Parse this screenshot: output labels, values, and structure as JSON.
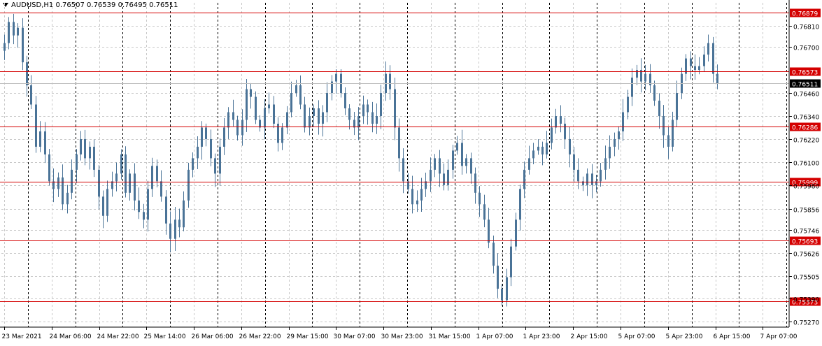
{
  "header": {
    "symbol": "AUDUSD,H1",
    "open": "0.76507",
    "high": "0.76539",
    "low": "0.76495",
    "close": "0.76511"
  },
  "colors": {
    "background": "#ffffff",
    "grid": "#c8c8c8",
    "candle": "#4a7397",
    "level_line": "#d40000",
    "level_label_bg": "#d40000",
    "current_price_bg": "#000000"
  },
  "chart_data": {
    "type": "candlestick",
    "ylim": [
      0.7524,
      0.7693
    ],
    "y_ticks": [
      "0.76810",
      "0.76700",
      "0.76460",
      "0.76340",
      "0.76220",
      "0.76100",
      "0.75980",
      "0.75856",
      "0.75746",
      "0.75626",
      "0.75505",
      "0.75390",
      "0.75270"
    ],
    "x_ticks": [
      "23 Mar 2021",
      "24 Mar 06:00",
      "24 Mar 22:00",
      "25 Mar 14:00",
      "26 Mar 06:00",
      "26 Mar 22:00",
      "29 Mar 15:00",
      "30 Mar 07:00",
      "30 Mar 23:00",
      "31 Mar 15:00",
      "1 Apr 07:00",
      "1 Apr 23:00",
      "2 Apr 15:00",
      "5 Apr 07:00",
      "5 Apr 23:00",
      "6 Apr 15:00",
      "7 Apr 07:00"
    ],
    "levels": [
      "0.76879",
      "0.76573",
      "0.76286",
      "0.75999",
      "0.75693",
      "0.75373"
    ],
    "current_price": "0.76511",
    "closes": [
      0.7672,
      0.7683,
      0.7676,
      0.768,
      0.7662,
      0.765,
      0.764,
      0.7618,
      0.7626,
      0.7614,
      0.76,
      0.7596,
      0.7602,
      0.7588,
      0.7594,
      0.7606,
      0.7614,
      0.7622,
      0.7612,
      0.7618,
      0.7606,
      0.7592,
      0.7582,
      0.7596,
      0.76,
      0.7604,
      0.7614,
      0.7594,
      0.7604,
      0.759,
      0.7584,
      0.758,
      0.7596,
      0.7608,
      0.76,
      0.7592,
      0.7578,
      0.757,
      0.758,
      0.7576,
      0.759,
      0.7606,
      0.7612,
      0.7618,
      0.7628,
      0.7622,
      0.7612,
      0.7604,
      0.7618,
      0.7628,
      0.7636,
      0.7632,
      0.7624,
      0.7632,
      0.7648,
      0.7644,
      0.7632,
      0.7628,
      0.7638,
      0.764,
      0.763,
      0.762,
      0.7628,
      0.7636,
      0.7646,
      0.765,
      0.764,
      0.7628,
      0.7634,
      0.7638,
      0.763,
      0.7636,
      0.7646,
      0.7652,
      0.7656,
      0.7646,
      0.7638,
      0.7632,
      0.7628,
      0.7634,
      0.764,
      0.7636,
      0.763,
      0.7634,
      0.7646,
      0.7656,
      0.7648,
      0.7628,
      0.7612,
      0.76,
      0.7596,
      0.7588,
      0.759,
      0.7596,
      0.76,
      0.7606,
      0.7612,
      0.7604,
      0.7598,
      0.7606,
      0.7616,
      0.762,
      0.7608,
      0.7612,
      0.7604,
      0.7594,
      0.7588,
      0.758,
      0.7568,
      0.7556,
      0.7544,
      0.7538,
      0.755,
      0.7566,
      0.758,
      0.7596,
      0.7606,
      0.7612,
      0.7616,
      0.7618,
      0.7614,
      0.762,
      0.7628,
      0.7634,
      0.763,
      0.7622,
      0.7614,
      0.7606,
      0.76,
      0.7598,
      0.7604,
      0.7598,
      0.76,
      0.7606,
      0.7612,
      0.7618,
      0.7622,
      0.7626,
      0.7636,
      0.7644,
      0.7654,
      0.7658,
      0.7652,
      0.7656,
      0.765,
      0.7642,
      0.7634,
      0.7624,
      0.7618,
      0.7632,
      0.7646,
      0.7656,
      0.7664,
      0.766,
      0.7658,
      0.766,
      0.7666,
      0.7672,
      0.7656,
      0.7651
    ]
  }
}
